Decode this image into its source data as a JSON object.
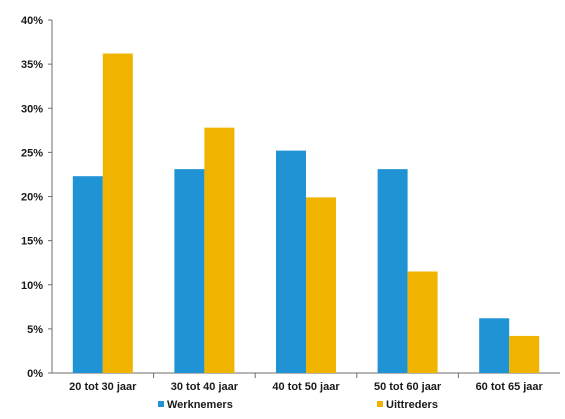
{
  "chart_data": {
    "type": "bar",
    "categories": [
      "20 tot 30 jaar",
      "30 tot 40 jaar",
      "40 tot 50 jaar",
      "50 tot 60 jaar",
      "60  tot 65 jaar"
    ],
    "series": [
      {
        "name": "Werknemers",
        "values": [
          22.3,
          23.1,
          25.2,
          23.1,
          6.2
        ],
        "color": "#1f93d3"
      },
      {
        "name": "Uittreders",
        "values": [
          36.2,
          27.8,
          19.9,
          11.5,
          4.2
        ],
        "color": "#f0b400"
      }
    ],
    "y_ticks": [
      "0%",
      "5%",
      "10%",
      "15%",
      "20%",
      "25%",
      "30%",
      "35%",
      "40%"
    ],
    "ylim": [
      0,
      40
    ],
    "grid": false,
    "legend_position": "bottom",
    "title": "",
    "xlabel": "",
    "ylabel": ""
  }
}
